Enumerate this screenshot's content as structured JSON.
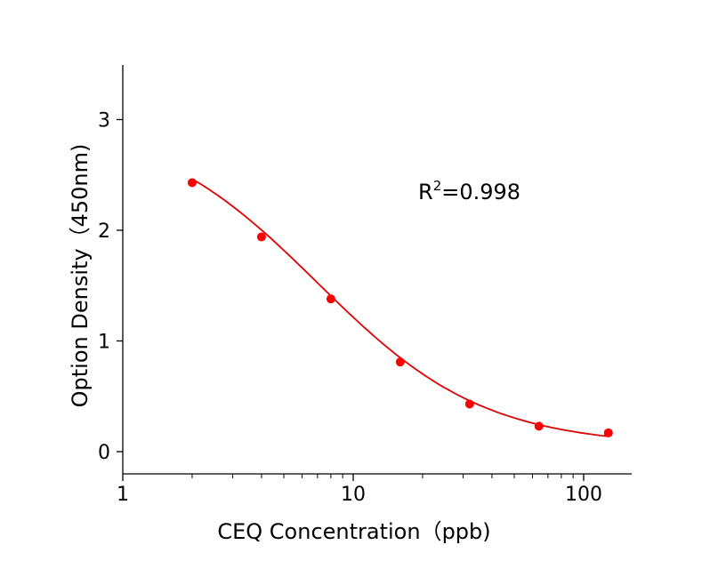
{
  "chart_data": {
    "type": "scatter",
    "xlabel": "CEQ  Concentration（ppb)",
    "ylabel": "Option Density（450nm)",
    "xscale": "log",
    "xlim": [
      1,
      160
    ],
    "ylim": [
      -0.2,
      3.5
    ],
    "xticks": [
      1,
      10,
      100
    ],
    "xtick_labels": [
      "1",
      "10",
      "100"
    ],
    "yticks": [
      0,
      1,
      2,
      3
    ],
    "ytick_labels": [
      "0",
      "1",
      "2",
      "3"
    ],
    "grid": false,
    "annotation": {
      "prefix": "R",
      "superscript": "2",
      "suffix": "=0.998"
    },
    "series": [
      {
        "x": [
          2,
          4,
          8,
          16,
          32,
          64,
          128
        ],
        "y": [
          2.43,
          1.94,
          1.38,
          0.81,
          0.43,
          0.23,
          0.17
        ],
        "color": "#ff0000",
        "fit": "sigmoidal curve",
        "fit_color": "#e00000"
      }
    ]
  }
}
